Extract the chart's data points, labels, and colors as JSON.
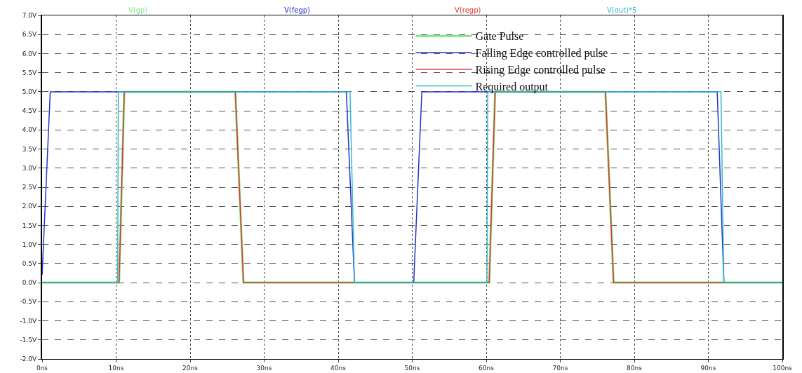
{
  "chart_data": {
    "type": "line",
    "xlim": [
      0,
      100
    ],
    "ylim": [
      -2,
      7
    ],
    "xticks": [
      {
        "value": 0,
        "label": "0ns"
      },
      {
        "value": 10,
        "label": "10ns"
      },
      {
        "value": 20,
        "label": "20ns"
      },
      {
        "value": 30,
        "label": "30ns"
      },
      {
        "value": 40,
        "label": "40ns"
      },
      {
        "value": 50,
        "label": "50ns"
      },
      {
        "value": 60,
        "label": "60ns"
      },
      {
        "value": 70,
        "label": "70ns"
      },
      {
        "value": 80,
        "label": "80ns"
      },
      {
        "value": 90,
        "label": "90ns"
      },
      {
        "value": 100,
        "label": "100ns"
      }
    ],
    "yticks": [
      {
        "value": -2,
        "label": "-2.0V"
      },
      {
        "value": -1.5,
        "label": "-1.5V"
      },
      {
        "value": -1,
        "label": "-1.0V"
      },
      {
        "value": -0.5,
        "label": "-0.5V"
      },
      {
        "value": 0,
        "label": "0.0V"
      },
      {
        "value": 0.5,
        "label": "0.5V"
      },
      {
        "value": 1,
        "label": "1.0V"
      },
      {
        "value": 1.5,
        "label": "1.5V"
      },
      {
        "value": 2,
        "label": "2.0V"
      },
      {
        "value": 2.5,
        "label": "2.5V"
      },
      {
        "value": 3,
        "label": "3.0V"
      },
      {
        "value": 3.5,
        "label": "3.5V"
      },
      {
        "value": 4,
        "label": "4.0V"
      },
      {
        "value": 4.5,
        "label": "4.5V"
      },
      {
        "value": 5,
        "label": "5.0V"
      },
      {
        "value": 5.5,
        "label": "5.5V"
      },
      {
        "value": 6,
        "label": "6.0V"
      },
      {
        "value": 6.5,
        "label": "6.5V"
      },
      {
        "value": 7,
        "label": "7.0V"
      }
    ],
    "grid": true,
    "legend": "top right",
    "marker": "none",
    "line_style": "solid",
    "annotations": [
      "V(gp)",
      "V(fegp)",
      "V(regp)",
      "V(out)*5"
    ],
    "series": [
      {
        "name": "Gate Pulse",
        "color": "#7ee87e",
        "x": [
          0,
          10.4,
          11.1,
          26.1,
          27.2,
          60.4,
          61.2,
          76.1,
          77.2,
          100
        ],
        "values": [
          0,
          0,
          5,
          5,
          0,
          0,
          5,
          5,
          0,
          0
        ]
      },
      {
        "name": "Falling Edge controlled pulse",
        "color": "#2233cc",
        "x": [
          0,
          1.1,
          41.1,
          42.2,
          50.2,
          51.3,
          91.2,
          92.1,
          100
        ],
        "values": [
          0.2,
          5,
          5,
          0,
          0,
          5,
          5,
          0,
          0
        ]
      },
      {
        "name": "Rising Edge controlled pulse",
        "color": "#dd3333",
        "x": [
          0,
          10.4,
          11.1,
          26.1,
          27.2,
          60.4,
          61.2,
          76.1,
          77.2,
          100
        ],
        "values": [
          0,
          0,
          5,
          5,
          0,
          0,
          5,
          5,
          0,
          0
        ]
      },
      {
        "name": "Required output",
        "color": "#33bbcc",
        "x": [
          0,
          10.2,
          10.3,
          41.6,
          42.2,
          60.1,
          60.2,
          91.7,
          92.1,
          100
        ],
        "values": [
          0,
          0,
          5,
          5,
          0,
          0,
          5,
          5,
          0,
          0
        ]
      }
    ]
  }
}
